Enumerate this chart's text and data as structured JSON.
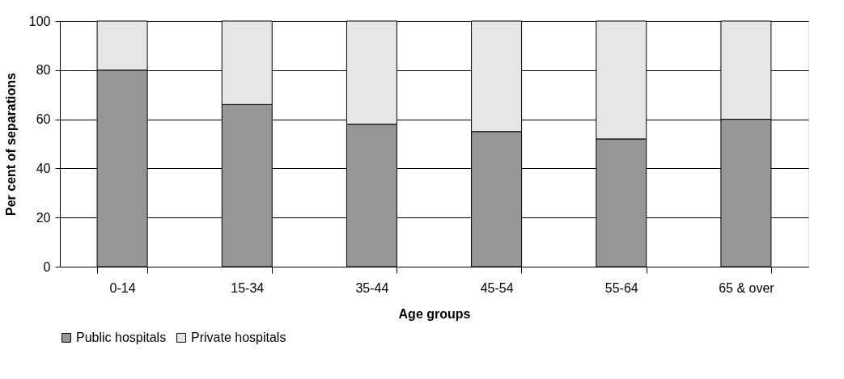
{
  "chart_data": {
    "type": "bar",
    "xlabel": "Age groups",
    "ylabel": "Per cent of separations",
    "categories": [
      "0-14",
      "15-34",
      "35-44",
      "45-54",
      "55-64",
      "65 & over"
    ],
    "stacked": true,
    "series": [
      {
        "name": "Public hospitals",
        "color": "#969696",
        "values": [
          80,
          66,
          58,
          55,
          52,
          60
        ]
      },
      {
        "name": "Private hospitals",
        "color": "#e6e6e6",
        "values": [
          20,
          34,
          42,
          45,
          48,
          40
        ]
      }
    ],
    "ylim": [
      0,
      100
    ],
    "yticks": [
      0,
      20,
      40,
      60,
      80,
      100
    ],
    "grid": "y",
    "legend": "bottom"
  }
}
